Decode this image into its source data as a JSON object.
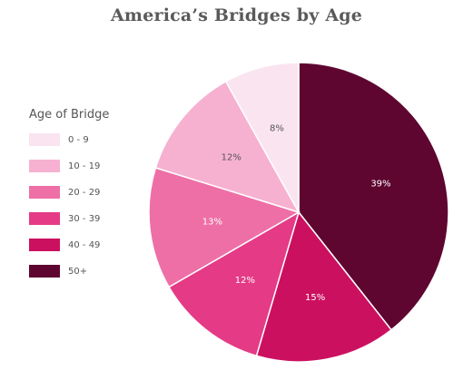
{
  "chart_data": {
    "type": "pie",
    "title": "America’s Bridges by Age",
    "legend_title": "Age of Bridge",
    "legend_position": "left",
    "categories": [
      "0 - 9",
      "10 - 19",
      "20 - 29",
      "30 - 39",
      "40 - 49",
      "50+"
    ],
    "values": [
      8,
      12,
      13,
      12,
      15,
      39
    ],
    "value_labels": [
      "8%",
      "12%",
      "13%",
      "12%",
      "15%",
      "39%"
    ],
    "colors": [
      "#f9e4ef",
      "#f6b1d1",
      "#ee6fa6",
      "#e53a86",
      "#cc1060",
      "#5e0630"
    ],
    "label_colors": [
      "#555555",
      "#555555",
      "#ffffff",
      "#ffffff",
      "#ffffff",
      "#ffffff"
    ],
    "start": "12 o'clock",
    "order_on_pie": "counter-clockwise from top, largest (50+) drawn clockwise from top"
  }
}
